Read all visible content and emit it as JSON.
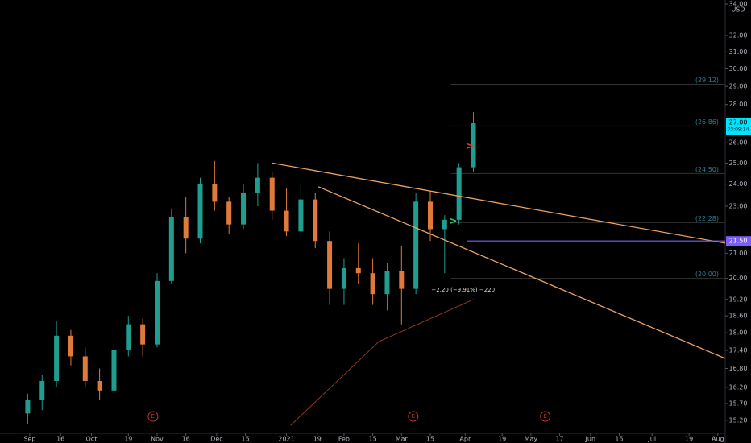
{
  "chart_data": {
    "type": "candlestick",
    "currency": "USD",
    "log_scale": true,
    "up_color": "#1f9e8f",
    "down_color": "#e07a3a",
    "x": [
      -1,
      6,
      13,
      20,
      27,
      34,
      41,
      48,
      55,
      62,
      69,
      76,
      83,
      90,
      97,
      104,
      111,
      118,
      125,
      132,
      139,
      146,
      153,
      160,
      167,
      174,
      181,
      188,
      195,
      202,
      209,
      216
    ],
    "open": [
      15.4,
      15.8,
      16.4,
      17.9,
      17.2,
      16.4,
      16.1,
      17.4,
      18.3,
      17.6,
      19.9,
      22.5,
      21.6,
      24.0,
      23.2,
      22.2,
      23.6,
      24.3,
      22.8,
      21.9,
      23.3,
      21.5,
      19.6,
      20.4,
      20.2,
      19.4,
      20.3,
      19.6,
      23.2,
      22.0,
      22.4,
      24.8
    ],
    "high": [
      16.0,
      16.6,
      18.4,
      18.1,
      17.5,
      16.8,
      17.6,
      18.6,
      18.5,
      20.2,
      22.9,
      23.4,
      24.3,
      25.1,
      23.4,
      24.0,
      25.0,
      24.6,
      23.8,
      24.0,
      23.6,
      21.9,
      20.8,
      21.4,
      20.8,
      20.6,
      21.3,
      23.6,
      23.7,
      22.6,
      25.0,
      27.6
    ],
    "low": [
      15.1,
      15.5,
      16.2,
      16.9,
      16.2,
      15.8,
      16.0,
      17.2,
      17.2,
      17.5,
      19.8,
      21.0,
      21.4,
      22.8,
      21.8,
      22.0,
      23.0,
      22.4,
      21.7,
      21.6,
      21.2,
      19.0,
      19.0,
      19.8,
      19.0,
      18.8,
      18.3,
      19.4,
      21.5,
      20.2,
      22.2,
      24.6
    ],
    "close": [
      15.8,
      16.4,
      17.9,
      17.2,
      16.4,
      16.1,
      17.4,
      18.3,
      17.6,
      19.9,
      22.5,
      21.6,
      24.0,
      23.2,
      22.2,
      23.6,
      24.3,
      22.8,
      21.9,
      23.3,
      21.5,
      19.6,
      20.4,
      20.2,
      19.4,
      20.3,
      19.6,
      23.2,
      22.0,
      22.4,
      24.8,
      27.0
    ],
    "xlim": [
      -14.5,
      338.6
    ],
    "xticks": [
      {
        "value": 0,
        "label": "Sep"
      },
      {
        "value": 15,
        "label": "16"
      },
      {
        "value": 30,
        "label": "Oct"
      },
      {
        "value": 48,
        "label": "19"
      },
      {
        "value": 62,
        "label": "Nov"
      },
      {
        "value": 76,
        "label": "16"
      },
      {
        "value": 91,
        "label": "Dec"
      },
      {
        "value": 105,
        "label": "15"
      },
      {
        "value": 125,
        "label": "2021"
      },
      {
        "value": 140,
        "label": "19"
      },
      {
        "value": 153,
        "label": "Feb"
      },
      {
        "value": 167,
        "label": "15"
      },
      {
        "value": 181,
        "label": "Mar"
      },
      {
        "value": 195,
        "label": "15"
      },
      {
        "value": 212,
        "label": "Apr"
      },
      {
        "value": 230,
        "label": "19"
      },
      {
        "value": 244,
        "label": "May"
      },
      {
        "value": 258,
        "label": "17"
      },
      {
        "value": 273,
        "label": "Jun"
      },
      {
        "value": 287,
        "label": "15"
      },
      {
        "value": 303,
        "label": "Jul"
      },
      {
        "value": 321,
        "label": "19"
      },
      {
        "value": 335,
        "label": "Aug"
      }
    ],
    "ylim": [
      14.82,
      34.27
    ],
    "yticks": [
      {
        "value": 34,
        "label": "34.00"
      },
      {
        "value": 32,
        "label": "32.00"
      },
      {
        "value": 31,
        "label": "31.00"
      },
      {
        "value": 30,
        "label": "30.00"
      },
      {
        "value": 29,
        "label": "29.00"
      },
      {
        "value": 28,
        "label": "28.00"
      },
      {
        "value": 26,
        "label": "26.00"
      },
      {
        "value": 25,
        "label": "25.00"
      },
      {
        "value": 24,
        "label": "24.00"
      },
      {
        "value": 23,
        "label": "23.00"
      },
      {
        "value": 21,
        "label": "21.00"
      },
      {
        "value": 20,
        "label": "20.00"
      },
      {
        "value": 19.2,
        "label": "19.20"
      },
      {
        "value": 18.6,
        "label": "18.60"
      },
      {
        "value": 18,
        "label": "18.00"
      },
      {
        "value": 17.4,
        "label": "17.40"
      },
      {
        "value": 16.8,
        "label": "16.80"
      },
      {
        "value": 16.2,
        "label": "16.20"
      },
      {
        "value": 15.7,
        "label": "15.70"
      },
      {
        "value": 15.2,
        "label": "15.20"
      }
    ],
    "levels": [
      {
        "value": 29.12,
        "label": "(29.12)"
      },
      {
        "value": 26.86,
        "label": "(26.86)"
      },
      {
        "value": 24.5,
        "label": "(24.50)"
      },
      {
        "value": 22.28,
        "label": "(22.28)"
      },
      {
        "value": 20,
        "label": "(20.00)"
      }
    ],
    "levels_start": 205,
    "level_color": "#2b7f8f",
    "trendlines": [
      {
        "x": [
          118,
          338.6
        ],
        "y": [
          25.0,
          21.41
        ],
        "color": "#e8a064"
      },
      {
        "x": [
          140.5,
          338.6
        ],
        "y": [
          23.88,
          17.13
        ],
        "color": "#e8a064"
      }
    ],
    "moving_average": {
      "x": [
        127,
        170,
        216
      ],
      "y": [
        15.05,
        17.7,
        19.2
      ],
      "color": "#8c3a1c"
    },
    "last_price": {
      "value": 27.0,
      "label": "27.00",
      "countdown": "03:09:14",
      "color": "#00e5ff"
    },
    "marked_level": {
      "value": 21.5,
      "label": "21.50",
      "start": 213,
      "color": "#7b5cff"
    },
    "measurement": {
      "text": "−2.20 (−9.91%) −220",
      "x": 211,
      "y": 19.56
    },
    "earnings": [
      {
        "x": 60,
        "label": "E"
      },
      {
        "x": 186.7,
        "label": "E"
      },
      {
        "x": 251,
        "label": "E"
      }
    ],
    "signals": [
      {
        "x": 214.2,
        "y": 25.8,
        "label": ">",
        "color": "#e03535"
      },
      {
        "x": 206,
        "y": 22.33,
        "label": ">",
        "color": "#3fc46a"
      }
    ]
  }
}
